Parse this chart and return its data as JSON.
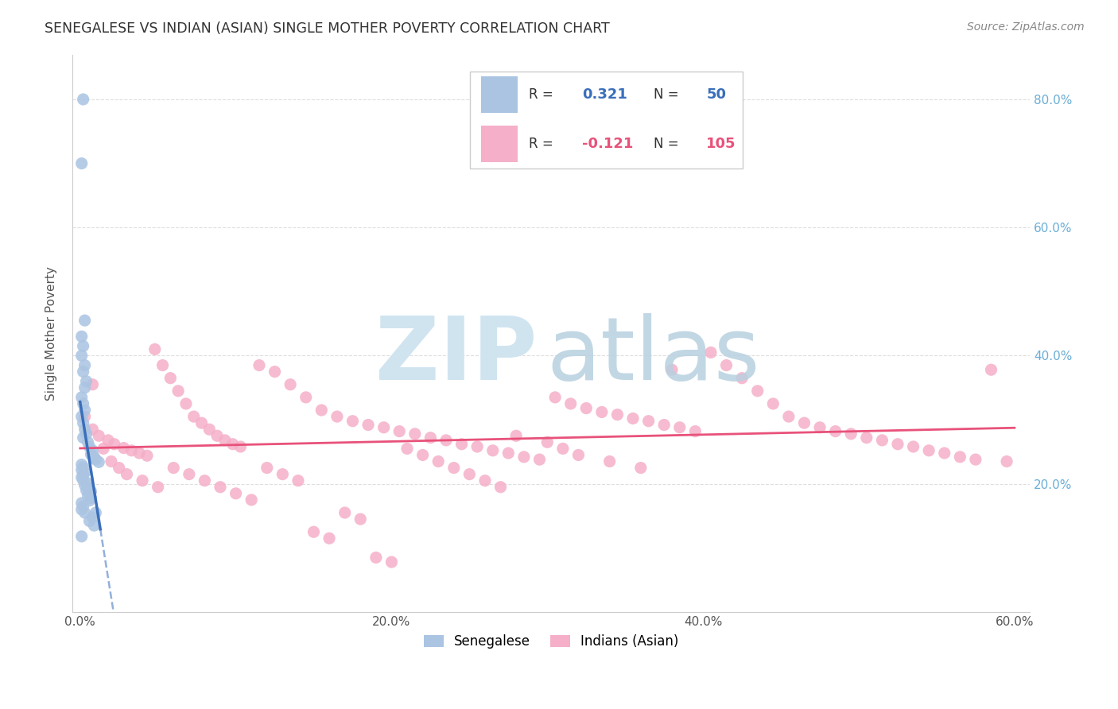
{
  "title": "SENEGALESE VS INDIAN (ASIAN) SINGLE MOTHER POVERTY CORRELATION CHART",
  "source": "Source: ZipAtlas.com",
  "ylabel": "Single Mother Poverty",
  "xlim": [
    0.0,
    0.6
  ],
  "ylim": [
    0.0,
    0.87
  ],
  "color_senegalese": "#aac4e2",
  "color_indian": "#f5afc8",
  "color_senegalese_line": "#3a6fba",
  "color_indian_line": "#e8527a",
  "color_right_ticks": "#6baed6",
  "background_color": "#ffffff",
  "grid_color": "#dedede",
  "watermark_zip_color": "#d0e4f0",
  "watermark_atlas_color": "#b8d0e0",
  "sen_x": [
    0.002,
    0.001,
    0.003,
    0.001,
    0.002,
    0.001,
    0.003,
    0.002,
    0.004,
    0.003,
    0.001,
    0.002,
    0.003,
    0.001,
    0.002,
    0.003,
    0.004,
    0.002,
    0.005,
    0.006,
    0.008,
    0.007,
    0.009,
    0.01,
    0.012,
    0.001,
    0.002,
    0.001,
    0.003,
    0.002,
    0.001,
    0.002,
    0.004,
    0.003,
    0.005,
    0.004,
    0.006,
    0.005,
    0.007,
    0.006,
    0.001,
    0.002,
    0.001,
    0.003,
    0.008,
    0.006,
    0.009,
    0.007,
    0.001,
    0.01
  ],
  "sen_y": [
    0.8,
    0.7,
    0.455,
    0.43,
    0.415,
    0.4,
    0.385,
    0.375,
    0.36,
    0.35,
    0.335,
    0.325,
    0.315,
    0.305,
    0.295,
    0.285,
    0.278,
    0.272,
    0.265,
    0.258,
    0.252,
    0.246,
    0.242,
    0.238,
    0.234,
    0.23,
    0.226,
    0.222,
    0.218,
    0.214,
    0.21,
    0.206,
    0.202,
    0.198,
    0.194,
    0.19,
    0.186,
    0.182,
    0.178,
    0.174,
    0.17,
    0.165,
    0.16,
    0.155,
    0.148,
    0.142,
    0.135,
    0.188,
    0.118,
    0.155
  ],
  "ind_x": [
    0.003,
    0.008,
    0.012,
    0.018,
    0.022,
    0.028,
    0.033,
    0.038,
    0.043,
    0.048,
    0.053,
    0.058,
    0.063,
    0.068,
    0.073,
    0.078,
    0.083,
    0.088,
    0.093,
    0.098,
    0.103,
    0.115,
    0.125,
    0.135,
    0.145,
    0.155,
    0.165,
    0.175,
    0.185,
    0.195,
    0.205,
    0.215,
    0.225,
    0.235,
    0.245,
    0.255,
    0.265,
    0.275,
    0.285,
    0.295,
    0.305,
    0.315,
    0.325,
    0.335,
    0.345,
    0.355,
    0.365,
    0.375,
    0.385,
    0.395,
    0.405,
    0.415,
    0.425,
    0.435,
    0.445,
    0.455,
    0.465,
    0.475,
    0.485,
    0.495,
    0.505,
    0.515,
    0.525,
    0.535,
    0.545,
    0.555,
    0.565,
    0.575,
    0.585,
    0.595,
    0.008,
    0.015,
    0.02,
    0.025,
    0.03,
    0.04,
    0.05,
    0.06,
    0.07,
    0.08,
    0.09,
    0.1,
    0.11,
    0.12,
    0.13,
    0.14,
    0.15,
    0.16,
    0.17,
    0.18,
    0.19,
    0.2,
    0.21,
    0.22,
    0.23,
    0.24,
    0.25,
    0.26,
    0.27,
    0.28,
    0.3,
    0.31,
    0.32,
    0.34,
    0.36,
    0.38
  ],
  "ind_y": [
    0.305,
    0.285,
    0.275,
    0.268,
    0.262,
    0.256,
    0.252,
    0.248,
    0.244,
    0.41,
    0.385,
    0.365,
    0.345,
    0.325,
    0.305,
    0.295,
    0.285,
    0.275,
    0.268,
    0.262,
    0.258,
    0.385,
    0.375,
    0.355,
    0.335,
    0.315,
    0.305,
    0.298,
    0.292,
    0.288,
    0.282,
    0.278,
    0.272,
    0.268,
    0.262,
    0.258,
    0.252,
    0.248,
    0.242,
    0.238,
    0.335,
    0.325,
    0.318,
    0.312,
    0.308,
    0.302,
    0.298,
    0.292,
    0.288,
    0.282,
    0.405,
    0.385,
    0.365,
    0.345,
    0.325,
    0.305,
    0.295,
    0.288,
    0.282,
    0.278,
    0.272,
    0.268,
    0.262,
    0.258,
    0.252,
    0.248,
    0.242,
    0.238,
    0.378,
    0.235,
    0.355,
    0.255,
    0.235,
    0.225,
    0.215,
    0.205,
    0.195,
    0.225,
    0.215,
    0.205,
    0.195,
    0.185,
    0.175,
    0.225,
    0.215,
    0.205,
    0.125,
    0.115,
    0.155,
    0.145,
    0.085,
    0.078,
    0.255,
    0.245,
    0.235,
    0.225,
    0.215,
    0.205,
    0.195,
    0.275,
    0.265,
    0.255,
    0.245,
    0.235,
    0.225,
    0.378
  ]
}
